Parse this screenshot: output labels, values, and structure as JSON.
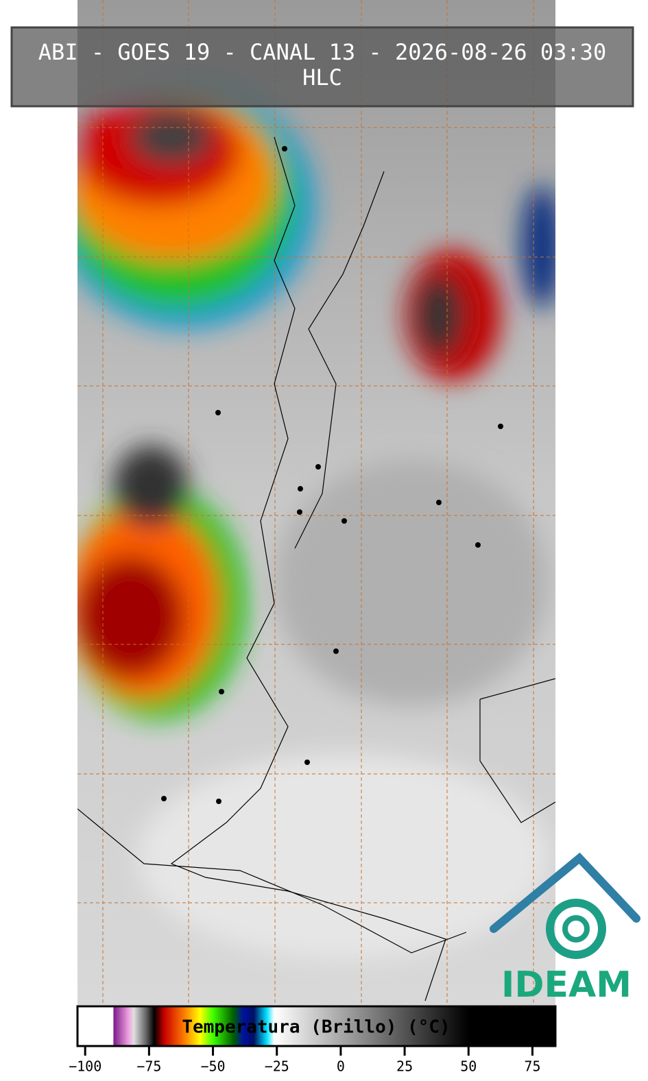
{
  "header": {
    "title": "ABI - GOES 19 - CANAL 13 - 2026-08-26 03:30",
    "subtitle": "HLC"
  },
  "colorbar": {
    "label": "Temperatura (Brillo) (°C)",
    "lim": [
      -103,
      84
    ],
    "ticks": [
      {
        "value": -100,
        "label": "−100"
      },
      {
        "value": -75,
        "label": "−75"
      },
      {
        "value": -50,
        "label": "−50"
      },
      {
        "value": -25,
        "label": "−25"
      },
      0,
      25,
      50,
      75
    ],
    "stops": [
      {
        "value": -103,
        "color": "#ffffff"
      },
      {
        "value": -89,
        "color": "#ffffff"
      },
      {
        "value": -88.9,
        "color": "#7a1a8a"
      },
      {
        "value": -83,
        "color": "#f0a0e0"
      },
      {
        "value": -81,
        "color": "#e0e0e0"
      },
      {
        "value": -76,
        "color": "#606060"
      },
      {
        "value": -73,
        "color": "#000000"
      },
      {
        "value": -69,
        "color": "#c80000"
      },
      {
        "value": -61,
        "color": "#ff8000"
      },
      {
        "value": -55,
        "color": "#ffff00"
      },
      {
        "value": -50,
        "color": "#40ff00"
      },
      {
        "value": -42,
        "color": "#006000"
      },
      {
        "value": -38,
        "color": "#0010a0"
      },
      {
        "value": -34,
        "color": "#001060"
      },
      {
        "value": -29,
        "color": "#00e0ff"
      },
      {
        "value": -26,
        "color": "#ffffff"
      },
      {
        "value": 50,
        "color": "#000000"
      },
      {
        "value": 84,
        "color": "#000000"
      }
    ]
  },
  "logo": {
    "text": "IDEAM"
  }
}
